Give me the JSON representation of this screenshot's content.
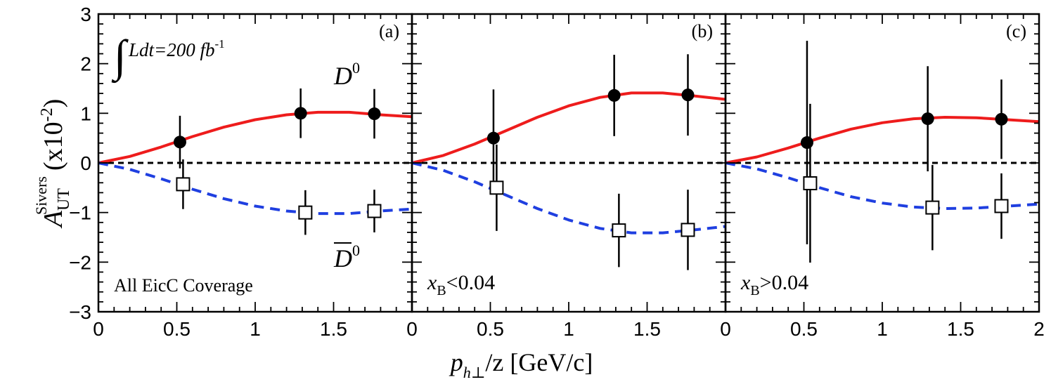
{
  "chart_data": {
    "type": "scatter",
    "shared": {
      "xlabel": "p",
      "xlabel_sub": "h⊥",
      "xlabel_tail": "/z [GeV/c]",
      "ylabel_main": "A",
      "ylabel_sub": "UT",
      "ylabel_sup": "Sivers",
      "ylabel_tail": "(x10",
      "ylabel_exp": "-2",
      "ylabel_close": ")",
      "ylim": [
        -3,
        3
      ],
      "yticks": [
        -3,
        -2,
        -1,
        0,
        1,
        2,
        3
      ],
      "ytick_labels": [
        "−3",
        "−2",
        "−1",
        "0",
        "1",
        "2",
        "3"
      ],
      "xlim": [
        0,
        2
      ],
      "xticks": [
        0,
        0.5,
        1,
        1.5
      ],
      "xtick_labels": [
        "0",
        "0.5",
        "1",
        "1.5"
      ],
      "last_xtick_label": "2",
      "zero_line": "dashed black",
      "colors": {
        "D0_curve": "#ee1c1c",
        "D0bar_curve": "#1f3fe0",
        "points": "#000000"
      }
    },
    "annotations": {
      "luminosity": "Ldt=200 fb",
      "luminosity_exp": "-1",
      "d0_label": "D",
      "d0_sup": "0",
      "d0bar_label": "D",
      "d0bar_sup": "0"
    },
    "panels": [
      {
        "tag": "(a)",
        "condition_label": "All EicC Coverage",
        "condition_var": "",
        "condition_sub": "",
        "condition_rest": "",
        "curve_x": [
          0,
          0.2,
          0.4,
          0.6,
          0.8,
          1.0,
          1.2,
          1.4,
          1.6,
          1.8,
          2.0
        ],
        "series": [
          {
            "name": "D0",
            "marker": "filled-circle",
            "x": [
              0.52,
              1.29,
              1.76
            ],
            "y": [
              0.42,
              1.0,
              0.99
            ],
            "err": [
              0.53,
              0.5,
              0.5
            ],
            "curve": [
              0,
              0.13,
              0.32,
              0.53,
              0.72,
              0.87,
              0.97,
              1.02,
              1.02,
              0.97,
              0.93
            ]
          },
          {
            "name": "D0bar",
            "marker": "open-square",
            "x": [
              0.54,
              1.32,
              1.76
            ],
            "y": [
              -0.43,
              -1.0,
              -0.97
            ],
            "err": [
              0.5,
              0.45,
              0.43
            ],
            "curve": [
              0,
              -0.13,
              -0.32,
              -0.53,
              -0.72,
              -0.87,
              -0.97,
              -1.02,
              -1.02,
              -0.97,
              -0.93
            ]
          }
        ]
      },
      {
        "tag": "(b)",
        "condition_label": "",
        "condition_var": "x",
        "condition_sub": "B",
        "condition_rest": "<0.04",
        "curve_x": [
          0,
          0.2,
          0.4,
          0.6,
          0.8,
          1.0,
          1.2,
          1.4,
          1.6,
          1.8,
          2.0
        ],
        "series": [
          {
            "name": "D0",
            "marker": "filled-circle",
            "x": [
              0.52,
              1.29,
              1.76
            ],
            "y": [
              0.5,
              1.36,
              1.37
            ],
            "err": [
              0.98,
              0.82,
              0.82
            ],
            "curve": [
              0,
              0.15,
              0.38,
              0.65,
              0.92,
              1.15,
              1.32,
              1.41,
              1.41,
              1.35,
              1.28
            ]
          },
          {
            "name": "D0bar",
            "marker": "open-square",
            "x": [
              0.54,
              1.32,
              1.76
            ],
            "y": [
              -0.5,
              -1.36,
              -1.35
            ],
            "err": [
              0.87,
              0.74,
              0.81
            ],
            "curve": [
              0,
              -0.15,
              -0.38,
              -0.65,
              -0.92,
              -1.15,
              -1.32,
              -1.41,
              -1.41,
              -1.35,
              -1.28
            ]
          }
        ]
      },
      {
        "tag": "(c)",
        "condition_label": "",
        "condition_var": "x",
        "condition_sub": "B",
        "condition_rest": ">0.04",
        "curve_x": [
          0,
          0.2,
          0.4,
          0.6,
          0.8,
          1.0,
          1.2,
          1.4,
          1.6,
          1.8,
          2.0
        ],
        "series": [
          {
            "name": "D0",
            "marker": "filled-circle",
            "x": [
              0.52,
              1.29,
              1.76
            ],
            "y": [
              0.41,
              0.89,
              0.88
            ],
            "err": [
              2.05,
              1.06,
              0.8
            ],
            "curve": [
              0,
              0.12,
              0.3,
              0.5,
              0.68,
              0.81,
              0.89,
              0.92,
              0.91,
              0.87,
              0.83
            ]
          },
          {
            "name": "D0bar",
            "marker": "open-square",
            "x": [
              0.54,
              1.32,
              1.76
            ],
            "y": [
              -0.41,
              -0.9,
              -0.87
            ],
            "err": [
              1.6,
              0.86,
              0.66
            ],
            "curve": [
              0,
              -0.12,
              -0.3,
              -0.5,
              -0.68,
              -0.81,
              -0.89,
              -0.92,
              -0.91,
              -0.87,
              -0.83
            ]
          }
        ]
      }
    ]
  }
}
